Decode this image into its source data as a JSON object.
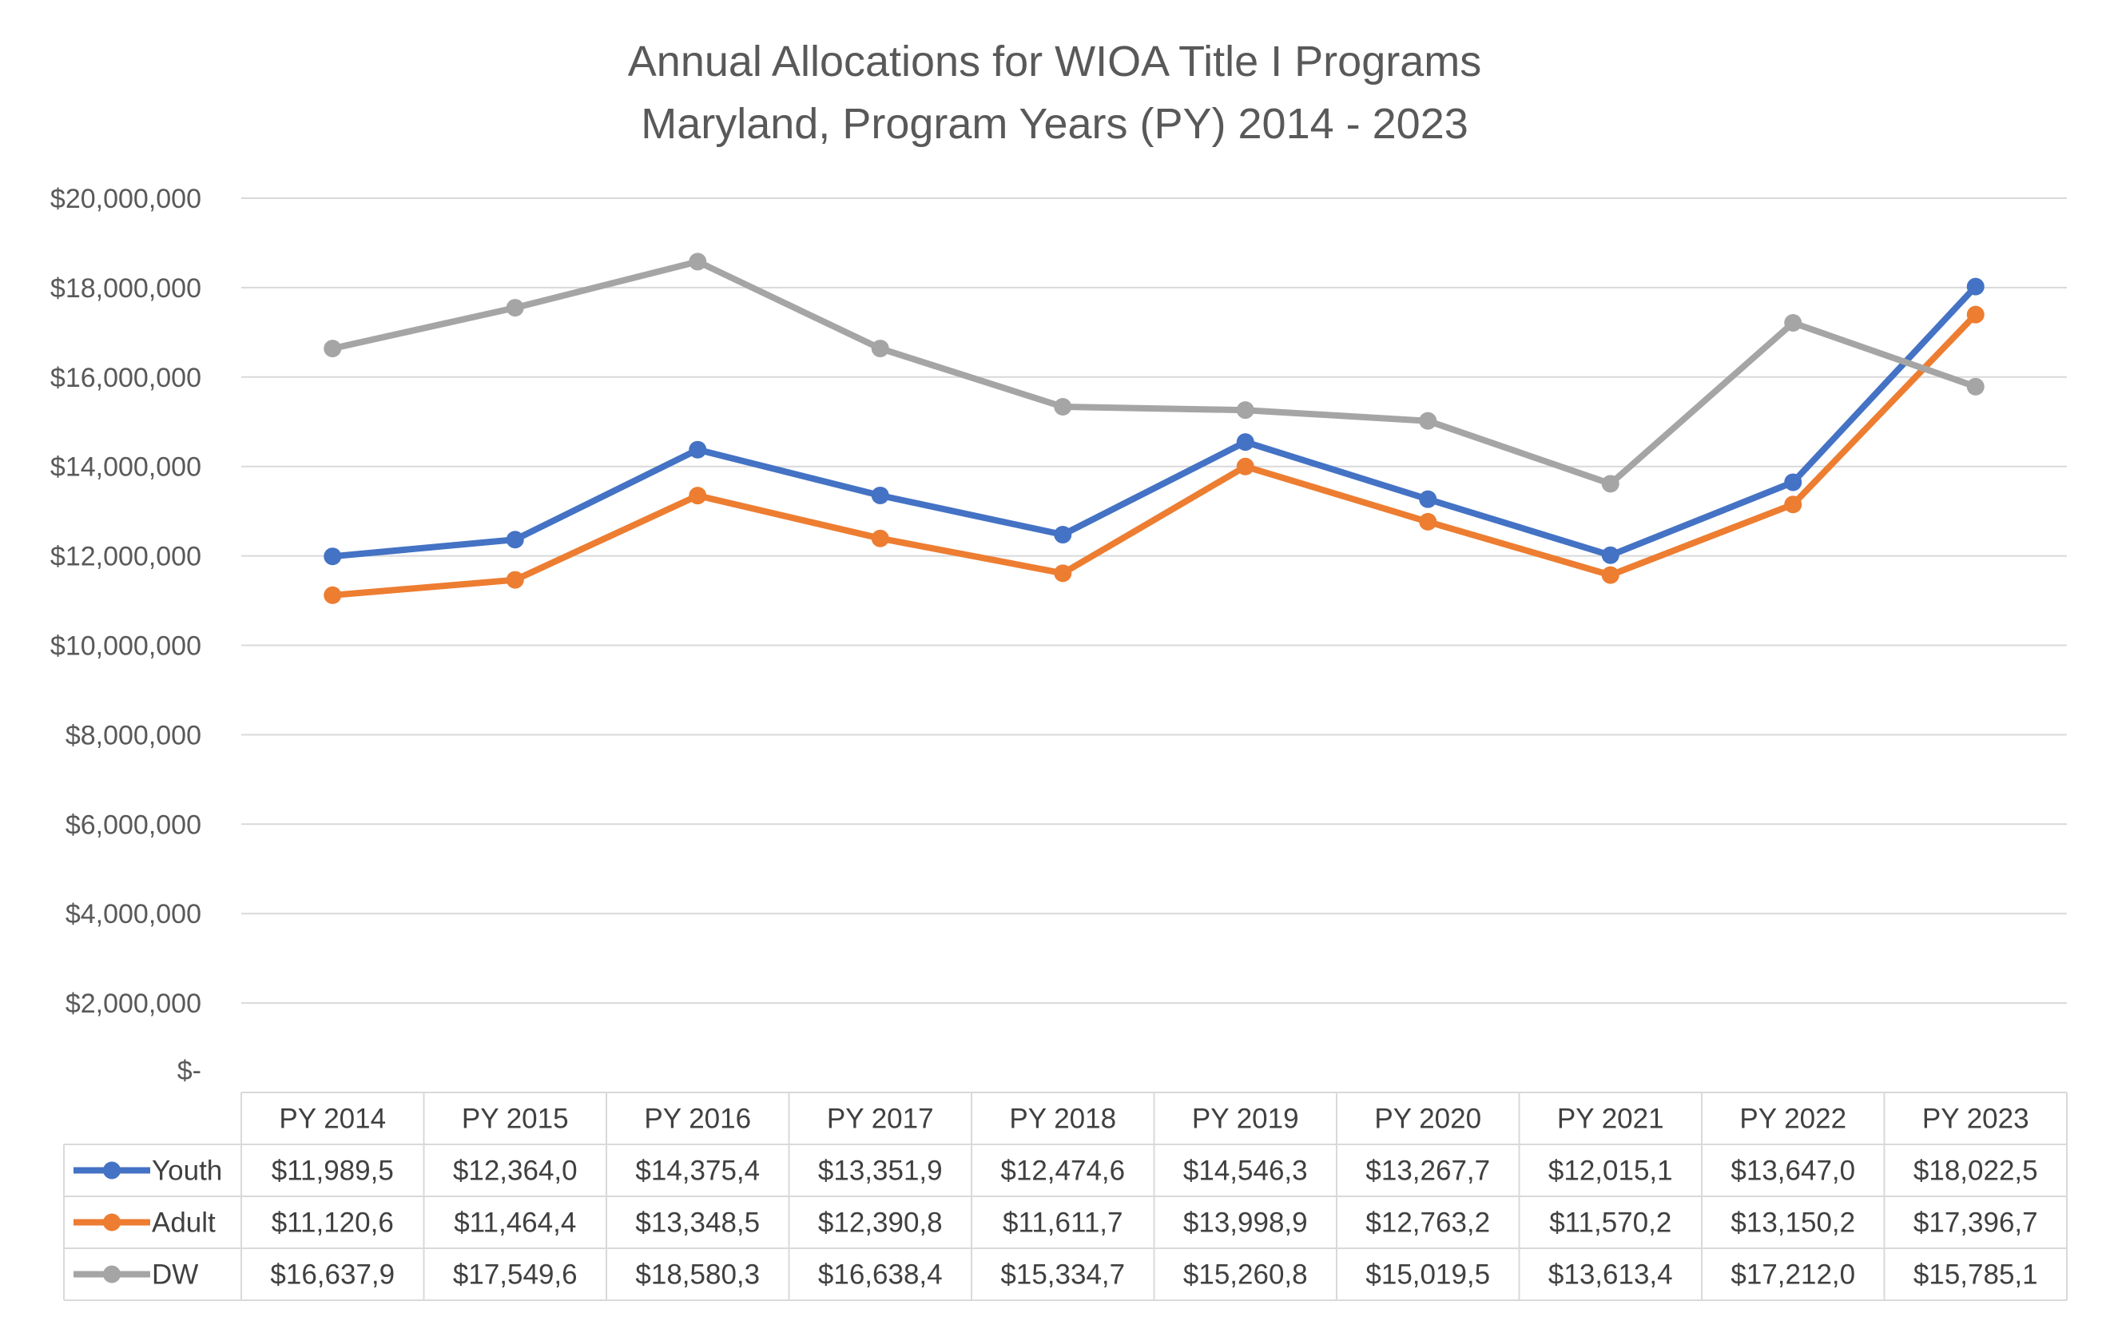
{
  "chart_data": {
    "type": "line",
    "title": "Annual Allocations for WIOA Title I Programs",
    "subtitle": "Maryland, Program Years (PY) 2014 - 2023",
    "categories": [
      "PY 2014",
      "PY 2015",
      "PY 2016",
      "PY 2017",
      "PY 2018",
      "PY 2019",
      "PY 2020",
      "PY 2021",
      "PY 2022",
      "PY 2023"
    ],
    "ylim": [
      0,
      20000000
    ],
    "y_ticks": [
      {
        "value": 20000000,
        "label": "$20,000,000"
      },
      {
        "value": 18000000,
        "label": "$18,000,000"
      },
      {
        "value": 16000000,
        "label": "$16,000,000"
      },
      {
        "value": 14000000,
        "label": "$14,000,000"
      },
      {
        "value": 12000000,
        "label": "$12,000,000"
      },
      {
        "value": 10000000,
        "label": "$10,000,000"
      },
      {
        "value": 8000000,
        "label": "$8,000,000"
      },
      {
        "value": 6000000,
        "label": "$6,000,000"
      },
      {
        "value": 4000000,
        "label": "$4,000,000"
      },
      {
        "value": 2000000,
        "label": "$2,000,000"
      },
      {
        "value": 0,
        "label": "$-"
      }
    ],
    "grid": true,
    "legend": "data-table",
    "series": [
      {
        "name": "Youth",
        "color": "#4472c4",
        "values": [
          11989500,
          12364000,
          14375400,
          13351900,
          12474600,
          14546300,
          13267700,
          12015100,
          13647000,
          18022500
        ],
        "labels": [
          "$11,989,5",
          "$12,364,0",
          "$14,375,4",
          "$13,351,9",
          "$12,474,6",
          "$14,546,3",
          "$13,267,7",
          "$12,015,1",
          "$13,647,0",
          "$18,022,5"
        ]
      },
      {
        "name": "Adult",
        "color": "#ed7d31",
        "values": [
          11120600,
          11464400,
          13348500,
          12390800,
          11611700,
          13998900,
          12763200,
          11570200,
          13150200,
          17396700
        ],
        "labels": [
          "$11,120,6",
          "$11,464,4",
          "$13,348,5",
          "$12,390,8",
          "$11,611,7",
          "$13,998,9",
          "$12,763,2",
          "$11,570,2",
          "$13,150,2",
          "$17,396,7"
        ]
      },
      {
        "name": "DW",
        "color": "#a5a5a5",
        "values": [
          16637900,
          17549600,
          18580300,
          16638400,
          15334700,
          15260800,
          15019500,
          13613400,
          17212000,
          15785100
        ],
        "labels": [
          "$16,637,9",
          "$17,549,6",
          "$18,580,3",
          "$16,638,4",
          "$15,334,7",
          "$15,260,8",
          "$15,019,5",
          "$13,613,4",
          "$17,212,0",
          "$15,785,1"
        ]
      }
    ]
  }
}
